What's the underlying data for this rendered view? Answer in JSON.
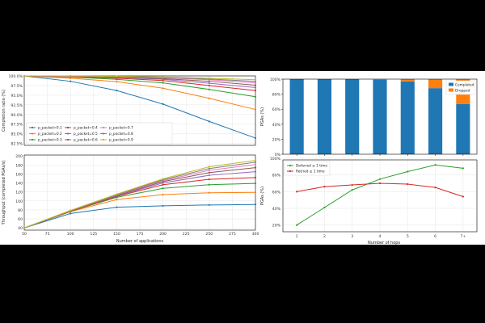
{
  "chart_data": [
    {
      "type": "line",
      "xlabel": "",
      "ylabel": "Completion ratio (%)",
      "x": [
        50,
        100,
        150,
        200,
        250,
        300
      ],
      "xlim": [
        50,
        300
      ],
      "ylim": [
        82.0,
        100.0
      ],
      "x_ticks": [
        "50",
        "75",
        "100",
        "125",
        "150",
        "175",
        "200",
        "225",
        "250",
        "275",
        "300"
      ],
      "y_ticks": [
        "82.5%",
        "85.0%",
        "87.5%",
        "90.0%",
        "92.5%",
        "95.0%",
        "97.5%",
        "100.0%"
      ],
      "grid": true,
      "legend_position": "lower-left",
      "series": [
        {
          "name": "p_packet=0.1",
          "color": "#1f77b4",
          "values": [
            100.0,
            98.6,
            96.2,
            92.7,
            88.2,
            83.9
          ]
        },
        {
          "name": "p_packet=0.2",
          "color": "#ff7f0e",
          "values": [
            100.0,
            99.4,
            98.5,
            96.8,
            94.2,
            91.3
          ]
        },
        {
          "name": "p_packet=0.3",
          "color": "#2ca02c",
          "values": [
            100.0,
            99.7,
            99.1,
            98.2,
            96.5,
            94.6
          ]
        },
        {
          "name": "p_packet=0.4",
          "color": "#d62728",
          "values": [
            100.0,
            99.8,
            99.4,
            98.8,
            97.5,
            96.2
          ]
        },
        {
          "name": "p_packet=0.5",
          "color": "#9467bd",
          "values": [
            100.0,
            99.9,
            99.6,
            99.1,
            98.1,
            97.0
          ]
        },
        {
          "name": "p_packet=0.6",
          "color": "#8c564b",
          "values": [
            100.0,
            99.9,
            99.7,
            99.3,
            98.6,
            97.6
          ]
        },
        {
          "name": "p_packet=0.7",
          "color": "#e377c2",
          "values": [
            100.0,
            99.9,
            99.8,
            99.5,
            99.0,
            98.2
          ]
        },
        {
          "name": "p_packet=0.8",
          "color": "#7f7f7f",
          "values": [
            100.0,
            100.0,
            99.8,
            99.6,
            99.2,
            98.6
          ]
        },
        {
          "name": "p_packet=0.9",
          "color": "#bcbd22",
          "values": [
            100.0,
            100.0,
            99.9,
            99.7,
            99.4,
            99.0
          ]
        }
      ]
    },
    {
      "type": "line",
      "xlabel": "Number of applications",
      "ylabel": "Throughput (completed PGAs/s)",
      "x": [
        50,
        100,
        150,
        200,
        250,
        300
      ],
      "xlim": [
        50,
        300
      ],
      "ylim": [
        35,
        202
      ],
      "x_ticks": [
        "50",
        "75",
        "100",
        "125",
        "150",
        "175",
        "200",
        "225",
        "250",
        "275",
        "300"
      ],
      "y_ticks": [
        "40",
        "60",
        "80",
        "100",
        "120",
        "140",
        "160",
        "180",
        "200"
      ],
      "grid": true,
      "series": [
        {
          "name": "p_packet=0.1",
          "color": "#1f77b4",
          "values": [
            40,
            72,
            86,
            89,
            91,
            92
          ]
        },
        {
          "name": "p_packet=0.2",
          "color": "#ff7f0e",
          "values": [
            40,
            76,
            103,
            114,
            118,
            119
          ]
        },
        {
          "name": "p_packet=0.3",
          "color": "#2ca02c",
          "values": [
            40,
            77,
            108,
            128,
            136,
            139
          ]
        },
        {
          "name": "p_packet=0.4",
          "color": "#d62728",
          "values": [
            40,
            77,
            110,
            136,
            148,
            152
          ]
        },
        {
          "name": "p_packet=0.5",
          "color": "#9467bd",
          "values": [
            40,
            78,
            111,
            140,
            157,
            165
          ]
        },
        {
          "name": "p_packet=0.6",
          "color": "#8c564b",
          "values": [
            40,
            78,
            112,
            143,
            163,
            174
          ]
        },
        {
          "name": "p_packet=0.7",
          "color": "#e377c2",
          "values": [
            40,
            78,
            113,
            145,
            168,
            181
          ]
        },
        {
          "name": "p_packet=0.8",
          "color": "#7f7f7f",
          "values": [
            40,
            78,
            114,
            147,
            172,
            186
          ]
        },
        {
          "name": "p_packet=0.9",
          "color": "#bcbd22",
          "values": [
            40,
            79,
            115,
            149,
            176,
            190
          ]
        }
      ]
    },
    {
      "type": "bar",
      "stacked": true,
      "xlabel": "",
      "ylabel": "PGAs (%)",
      "categories": [
        "1",
        "2",
        "3",
        "4",
        "5",
        "6",
        "7+"
      ],
      "ylim": [
        0,
        100
      ],
      "y_ticks": [
        "0%",
        "20%",
        "40%",
        "60%",
        "80%",
        "100%"
      ],
      "legend_position": "top-right",
      "series": [
        {
          "name": "Completed",
          "color": "#1f77b4",
          "values": [
            100,
            100,
            100,
            99,
            97,
            88,
            67
          ]
        },
        {
          "name": "Dropped",
          "color": "#ff7f0e",
          "values": [
            0,
            0,
            0,
            1,
            3,
            12,
            33
          ]
        }
      ]
    },
    {
      "type": "line",
      "xlabel": "Number of hops",
      "ylabel": "PGAs (%)",
      "categories": [
        "1",
        "2",
        "3",
        "4",
        "5",
        "6",
        "7+"
      ],
      "ylim": [
        12,
        98
      ],
      "y_ticks": [
        "20%",
        "40%",
        "60%",
        "80%",
        "100%"
      ],
      "grid": true,
      "legend_position": "top-left",
      "series": [
        {
          "name": "Deferred ≥ 1 time",
          "color": "#2ca02c",
          "values": [
            20,
            41,
            62,
            75,
            84,
            92,
            88
          ]
        },
        {
          "name": "Retried ≥ 1 time",
          "color": "#d62728",
          "values": [
            60,
            66,
            68,
            70,
            69,
            65,
            54
          ]
        }
      ]
    }
  ]
}
